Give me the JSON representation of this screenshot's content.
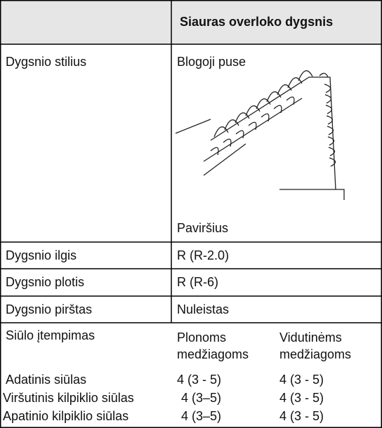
{
  "header": {
    "title": "Siauras overloko dygsnis"
  },
  "rows": [
    {
      "label": "Dygsnio stilius",
      "top_label": "Blogoji puse",
      "bottom_label": "Paviršius"
    },
    {
      "label": "Dygsnio ilgis",
      "value": "R (R-2.0)"
    },
    {
      "label": "Dygsnio plotis",
      "value": "R (R-6)"
    },
    {
      "label": "Dygsnio pirštas",
      "value": "Nuleistas"
    }
  ],
  "tension": {
    "label": "Siūlo įtempimas",
    "columns": [
      "Plonoms medžiagoms",
      "Vidutinėms medžiagoms"
    ],
    "rows": [
      {
        "label": "Adatinis siūlas",
        "values": [
          "4 (3 - 5)",
          "4 (3 - 5)"
        ]
      },
      {
        "label": "Viršutinis kilpiklio siūlas",
        "values": [
          "4 (3–5)",
          "4 (3 - 5)"
        ]
      },
      {
        "label": "Apatinio kilpiklio siūlas",
        "values": [
          "4 (3–5)",
          "4 (3 - 5)"
        ]
      }
    ]
  }
}
